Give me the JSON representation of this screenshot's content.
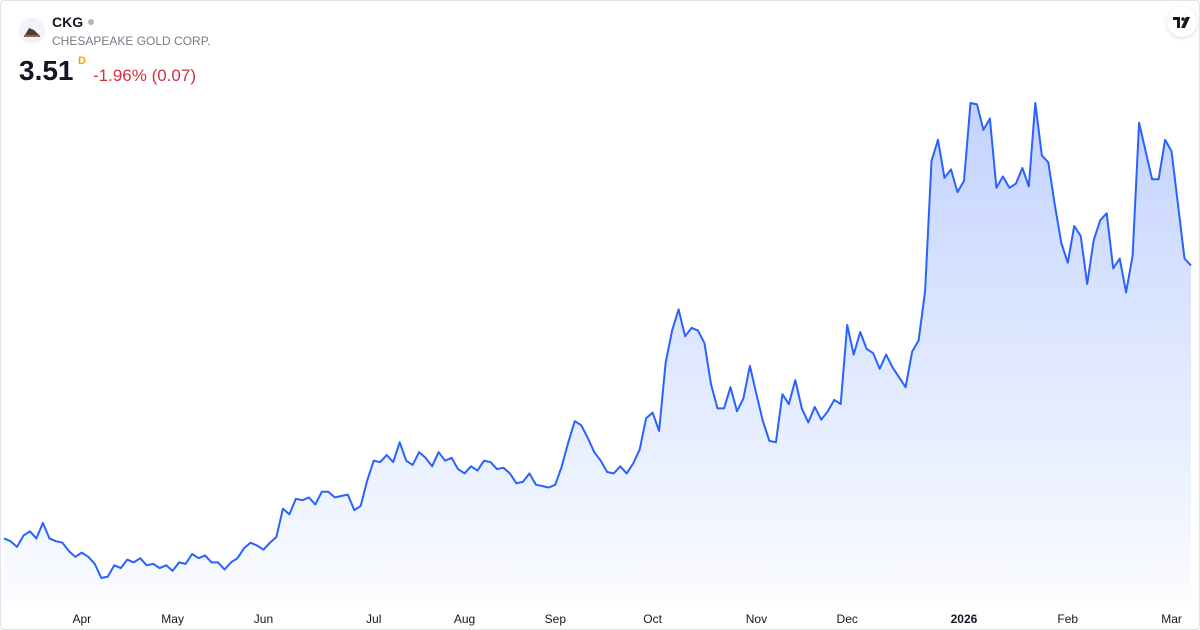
{
  "header": {
    "symbol": "CKG",
    "name": "CHESAPEAKE GOLD CORP.",
    "price": "3.51",
    "interval": "D",
    "change": "-1.96% (0.07)"
  },
  "chart_data": {
    "type": "line",
    "fill": true,
    "series": [
      {
        "color": "#2962ff",
        "values": [
          1.58,
          1.56,
          1.52,
          1.6,
          1.63,
          1.58,
          1.69,
          1.58,
          1.56,
          1.55,
          1.49,
          1.45,
          1.48,
          1.45,
          1.4,
          1.3,
          1.31,
          1.39,
          1.37,
          1.43,
          1.41,
          1.44,
          1.39,
          1.4,
          1.37,
          1.39,
          1.35,
          1.41,
          1.4,
          1.47,
          1.44,
          1.46,
          1.41,
          1.41,
          1.36,
          1.41,
          1.44,
          1.51,
          1.55,
          1.53,
          1.5,
          1.55,
          1.59,
          1.79,
          1.75,
          1.86,
          1.85,
          1.87,
          1.82,
          1.91,
          1.91,
          1.87,
          1.88,
          1.89,
          1.78,
          1.81,
          1.99,
          2.13,
          2.12,
          2.17,
          2.12,
          2.26,
          2.13,
          2.1,
          2.19,
          2.15,
          2.09,
          2.19,
          2.13,
          2.15,
          2.07,
          2.04,
          2.09,
          2.06,
          2.13,
          2.12,
          2.07,
          2.08,
          2.04,
          1.97,
          1.98,
          2.04,
          1.96,
          1.95,
          1.94,
          1.96,
          2.09,
          2.26,
          2.41,
          2.38,
          2.29,
          2.19,
          2.13,
          2.05,
          2.04,
          2.09,
          2.04,
          2.11,
          2.21,
          2.43,
          2.47,
          2.34,
          2.82,
          3.05,
          3.2,
          3.01,
          3.07,
          3.05,
          2.96,
          2.67,
          2.5,
          2.5,
          2.65,
          2.48,
          2.57,
          2.8,
          2.6,
          2.41,
          2.27,
          2.26,
          2.6,
          2.53,
          2.7,
          2.5,
          2.4,
          2.51,
          2.42,
          2.48,
          2.56,
          2.53,
          3.09,
          2.88,
          3.04,
          2.92,
          2.89,
          2.78,
          2.88,
          2.79,
          2.72,
          2.65,
          2.9,
          2.98,
          3.33,
          4.25,
          4.4,
          4.13,
          4.19,
          4.03,
          4.11,
          4.66,
          4.65,
          4.47,
          4.55,
          4.06,
          4.14,
          4.06,
          4.09,
          4.2,
          4.07,
          4.66,
          4.29,
          4.24,
          3.94,
          3.67,
          3.53,
          3.79,
          3.72,
          3.38,
          3.69,
          3.83,
          3.88,
          3.49,
          3.56,
          3.32,
          3.58,
          4.52,
          4.32,
          4.12,
          4.12,
          4.4,
          4.32,
          3.94,
          3.56,
          3.51
        ]
      }
    ],
    "xticks": [
      {
        "value": 12,
        "label": "Apr"
      },
      {
        "value": 26,
        "label": "May"
      },
      {
        "value": 40,
        "label": "Jun"
      },
      {
        "value": 57,
        "label": "Jul"
      },
      {
        "value": 71,
        "label": "Aug"
      },
      {
        "value": 85,
        "label": "Sep"
      },
      {
        "value": 100,
        "label": "Oct"
      },
      {
        "value": 116,
        "label": "Nov"
      },
      {
        "value": 130,
        "label": "Dec"
      },
      {
        "value": 148,
        "label": "2026"
      },
      {
        "value": 164,
        "label": "Feb"
      },
      {
        "value": 180,
        "label": "Mar"
      }
    ]
  }
}
